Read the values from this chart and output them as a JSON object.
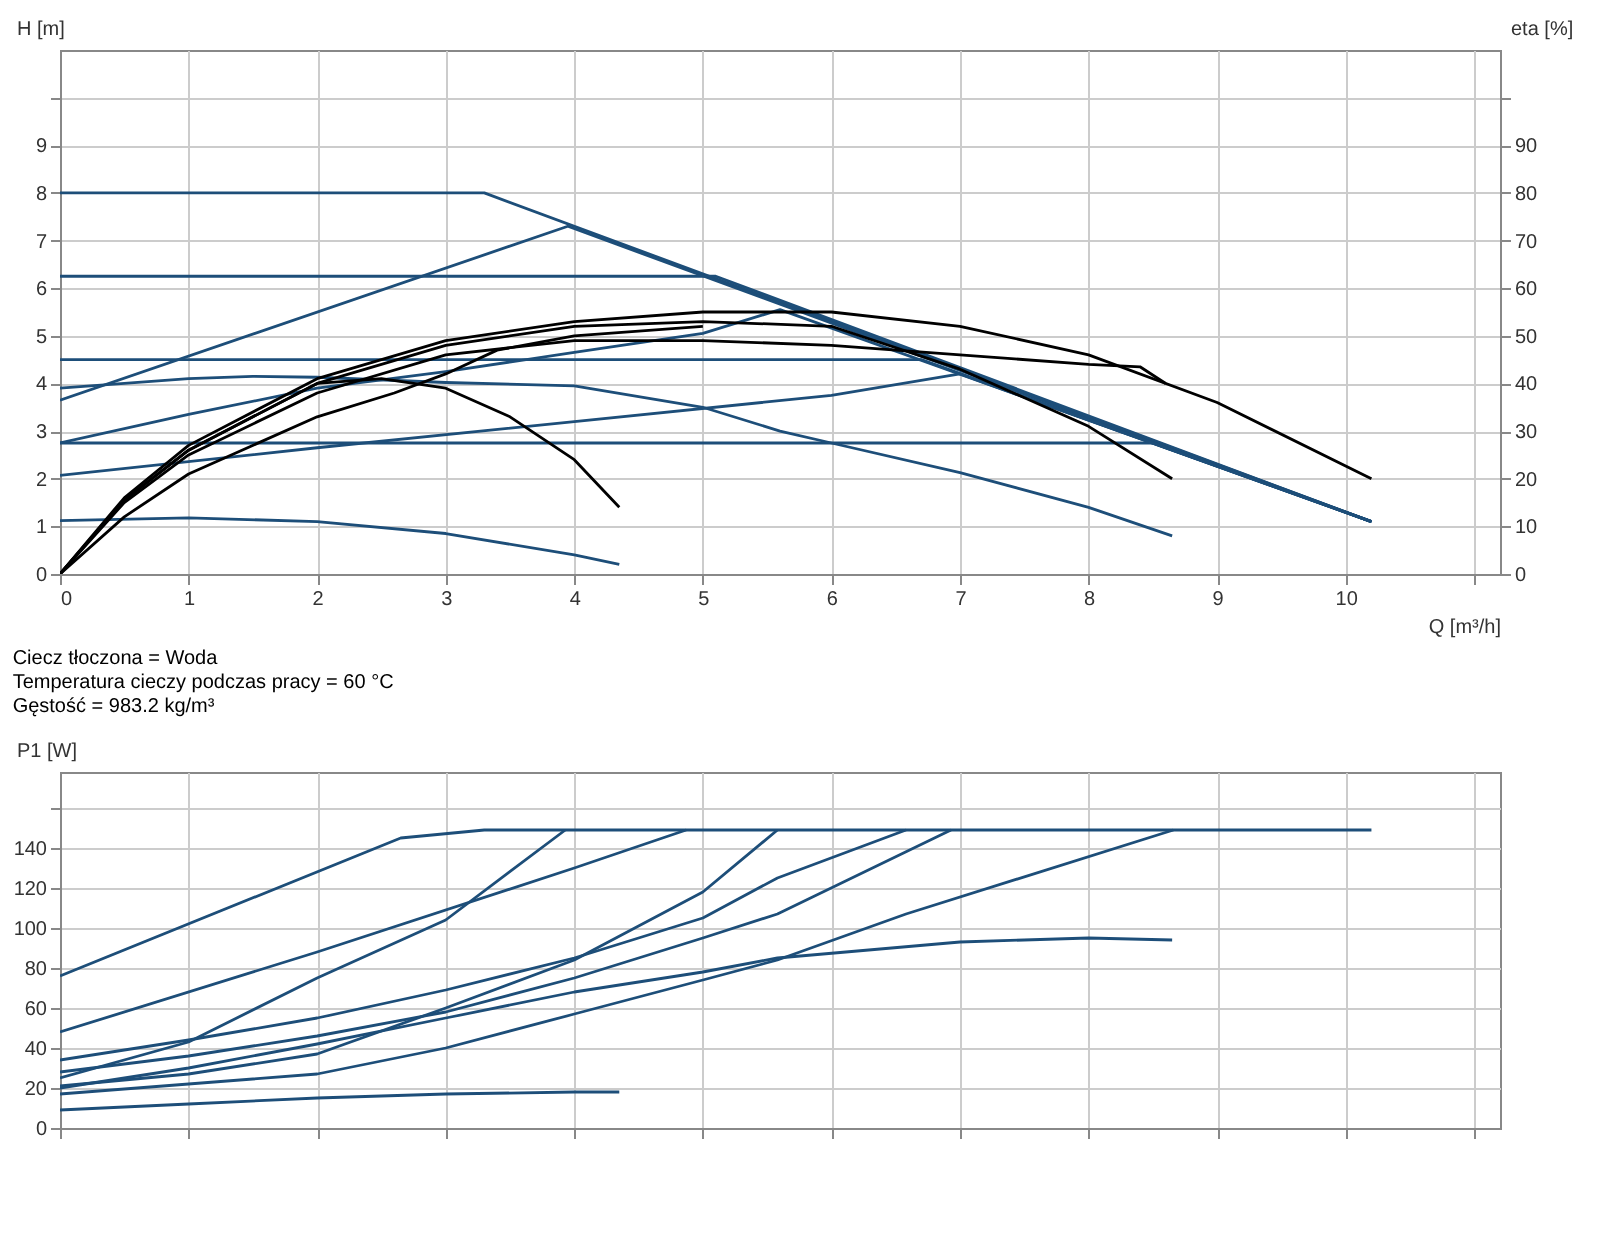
{
  "chart_data": [
    {
      "type": "line",
      "xlabel": "Q [m³/h]",
      "ylabel": "H [m]",
      "y2label": "eta [%]",
      "xlim": [
        0,
        11.2
      ],
      "xticks": [
        0,
        1,
        2,
        3,
        4,
        5,
        6,
        7,
        8,
        9,
        10,
        {
          "value": 11,
          "label": null
        }
      ],
      "ylim": [
        0,
        11
      ],
      "yticks": [
        0,
        1,
        2,
        3,
        4,
        5,
        6,
        7,
        8,
        9,
        {
          "value": 10,
          "label": null
        }
      ],
      "y2lim": [
        0,
        110
      ],
      "y2ticks": [
        0,
        10,
        20,
        30,
        40,
        50,
        60,
        70,
        80,
        90,
        {
          "value": 100,
          "label": null
        }
      ],
      "grid": true,
      "line_style": "solid",
      "series": [
        {
          "color": "#1d4e79",
          "x": [
            0,
            3.3,
            10.2
          ],
          "values": [
            8,
            8,
            1.1
          ]
        },
        {
          "color": "#1d4e79",
          "x": [
            0,
            3.95,
            10.2
          ],
          "values": [
            3.65,
            7.3,
            1.1
          ]
        },
        {
          "color": "#1d4e79",
          "x": [
            0,
            5.1,
            10.2
          ],
          "values": [
            6.25,
            6.25,
            1.1
          ]
        },
        {
          "color": "#1d4e79",
          "x": [
            0,
            6.7,
            10.2
          ],
          "values": [
            4.5,
            4.5,
            1.1
          ]
        },
        {
          "color": "#1d4e79",
          "x": [
            0,
            8.5,
            10.2
          ],
          "values": [
            2.75,
            2.75,
            1.1
          ]
        },
        {
          "color": "#1d4e79",
          "x": [
            0,
            1,
            2,
            3,
            4,
            5,
            5.6,
            10.2
          ],
          "values": [
            2.75,
            3.35,
            3.9,
            4.25,
            4.65,
            5.05,
            5.55,
            1.1
          ]
        },
        {
          "color": "#1d4e79",
          "x": [
            0,
            2,
            4,
            6,
            7,
            10.2
          ],
          "values": [
            2.07,
            2.65,
            3.2,
            3.75,
            4.2,
            1.1
          ]
        },
        {
          "color": "#1d4e79",
          "x": [
            0,
            1,
            1.5,
            2,
            3,
            4,
            5,
            5.6,
            6,
            7,
            8,
            8.65
          ],
          "values": [
            3.9,
            4.1,
            4.15,
            4.13,
            4.02,
            3.95,
            3.5,
            3.0,
            2.75,
            2.13,
            1.4,
            0.8
          ]
        },
        {
          "color": "#1d4e79",
          "x": [
            0,
            1,
            2,
            3,
            4,
            4.35
          ],
          "values": [
            1.12,
            1.18,
            1.1,
            0.85,
            0.4,
            0.2
          ]
        },
        {
          "color": "#000000",
          "axis": "y2",
          "x": [
            0,
            0.5,
            1,
            2,
            3,
            4,
            5,
            6,
            7,
            8,
            9,
            10.2
          ],
          "values": [
            0,
            16,
            27,
            41,
            49,
            53,
            55,
            55,
            52,
            46,
            36,
            20
          ]
        },
        {
          "color": "#000000",
          "axis": "y2",
          "x": [
            0,
            0.5,
            1,
            2,
            3,
            4,
            5,
            6,
            7,
            8,
            8.4,
            8.6
          ],
          "values": [
            0,
            15,
            25,
            38,
            46,
            49,
            49,
            48,
            46,
            44,
            43.5,
            40
          ]
        },
        {
          "color": "#000000",
          "axis": "y2",
          "x": [
            0,
            0.5,
            1,
            2,
            3,
            4,
            5,
            6,
            7,
            8,
            8.65
          ],
          "values": [
            0,
            15.5,
            26,
            40,
            48,
            52,
            53,
            52,
            43,
            31,
            20
          ]
        },
        {
          "color": "#000000",
          "axis": "y2",
          "x": [
            0,
            0.5,
            1,
            2,
            2.5,
            3,
            3.5,
            4,
            4.35
          ],
          "values": [
            0,
            15.5,
            26,
            40,
            41,
            39,
            33,
            24,
            14
          ]
        },
        {
          "color": "#000000",
          "axis": "y2",
          "x": [
            0,
            0.5,
            1,
            2,
            2.6,
            3,
            3.4,
            4,
            5
          ],
          "values": [
            0,
            12,
            21,
            33,
            38,
            42,
            47,
            50,
            52
          ]
        }
      ]
    },
    {
      "type": "line",
      "ylabel": "P1 [W]",
      "annotations": [
        "Ciecz tłoczona = Woda",
        "Temperatura cieczy podczas pracy = 60 °C",
        "Gęstość = 983.2 kg/m³"
      ],
      "xlim": [
        0,
        11.2
      ],
      "xticks": [
        0,
        1,
        2,
        3,
        4,
        5,
        6,
        7,
        8,
        9,
        10,
        {
          "value": 11,
          "label": null
        }
      ],
      "ylim": [
        0,
        178
      ],
      "yticks": [
        0,
        20,
        40,
        60,
        80,
        100,
        120,
        140,
        {
          "value": 160,
          "label": null
        }
      ],
      "tick_labels": "y",
      "grid": true,
      "line_style": "solid",
      "series": [
        {
          "color": "#1d4e79",
          "x": [
            0,
            2.65,
            3.3,
            10.2
          ],
          "values": [
            76,
            145,
            149,
            149
          ]
        },
        {
          "color": "#1d4e79",
          "x": [
            0,
            2,
            4,
            4.87
          ],
          "values": [
            48,
            88,
            130,
            149
          ]
        },
        {
          "color": "#1d4e79",
          "x": [
            0,
            1,
            2,
            3,
            3.93
          ],
          "values": [
            25,
            43,
            75,
            104,
            149
          ]
        },
        {
          "color": "#1d4e79",
          "x": [
            0,
            1,
            2,
            3,
            4,
            5,
            5.58
          ],
          "values": [
            21,
            27,
            37,
            60,
            84,
            118,
            149
          ]
        },
        {
          "color": "#1d4e79",
          "x": [
            0,
            1,
            2,
            3,
            4,
            5,
            5.58,
            6.58
          ],
          "values": [
            34,
            44,
            55,
            69,
            85,
            105,
            125,
            149
          ]
        },
        {
          "color": "#1d4e79",
          "x": [
            0,
            1,
            2,
            3,
            4,
            5,
            5.58,
            6.93
          ],
          "values": [
            28,
            36,
            46,
            58,
            75,
            95,
            107,
            149
          ]
        },
        {
          "color": "#1d4e79",
          "x": [
            0,
            2,
            3,
            4,
            5,
            5.58,
            6.58,
            8.66
          ],
          "values": [
            17,
            27,
            40,
            57,
            74,
            84,
            107,
            149
          ]
        },
        {
          "color": "#1d4e79",
          "x": [
            0,
            1,
            2,
            3,
            4,
            5,
            5.58,
            7,
            8,
            8.65
          ],
          "values": [
            20,
            30,
            42,
            55,
            68,
            78,
            85,
            93,
            95,
            94
          ]
        },
        {
          "color": "#1d4e79",
          "x": [
            0,
            1,
            2,
            3,
            4,
            4.35
          ],
          "values": [
            9,
            12,
            15,
            17,
            18,
            18
          ]
        }
      ]
    }
  ]
}
